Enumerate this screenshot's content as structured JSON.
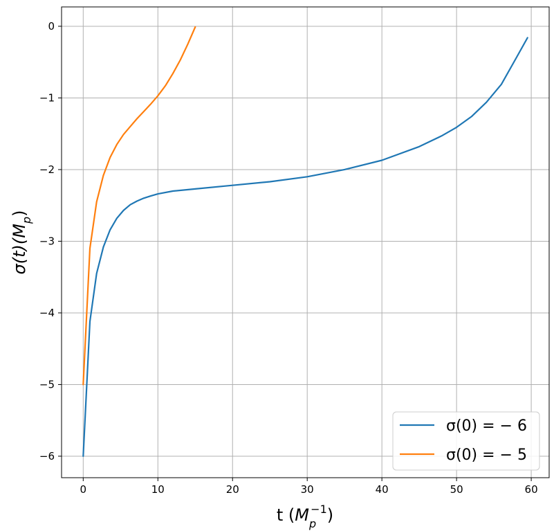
{
  "chart_data": {
    "type": "line",
    "xlabel_text": "t (",
    "xlabel_math": "M",
    "xlabel_sub": "p",
    "xlabel_sup": "−1",
    "xlabel_close": ")",
    "ylabel_text": "σ(t)(",
    "ylabel_math": "M",
    "ylabel_sub": "p",
    "ylabel_close": ")",
    "xlim": [
      -2.9,
      62.4
    ],
    "ylim": [
      -6.3,
      0.27
    ],
    "xticks": [
      0,
      10,
      20,
      30,
      40,
      50,
      60
    ],
    "xtick_labels": [
      "0",
      "10",
      "20",
      "30",
      "40",
      "50",
      "60"
    ],
    "yticks": [
      0,
      -1,
      -2,
      -3,
      -4,
      -5,
      -6
    ],
    "ytick_labels": [
      "0",
      "−1",
      "−2",
      "−3",
      "−4",
      "−5",
      "−6"
    ],
    "grid": true,
    "legend_position": "bottom-right",
    "series": [
      {
        "name": "σ(0) = − 6",
        "color": "#1f77b4",
        "x": [
          0,
          0.9,
          1.8,
          2.7,
          3.6,
          4.5,
          5.4,
          6.3,
          7.2,
          8.1,
          9.0,
          10,
          12,
          15,
          20,
          25,
          30,
          35,
          40,
          45,
          48,
          50,
          52,
          54,
          56,
          58,
          59.5
        ],
        "y": [
          -6.0,
          -4.12,
          -3.45,
          -3.08,
          -2.84,
          -2.68,
          -2.57,
          -2.49,
          -2.44,
          -2.4,
          -2.37,
          -2.34,
          -2.3,
          -2.27,
          -2.22,
          -2.17,
          -2.1,
          -2.0,
          -1.87,
          -1.68,
          -1.53,
          -1.41,
          -1.26,
          -1.06,
          -0.81,
          -0.44,
          -0.16
        ]
      },
      {
        "name": "σ(0) = − 5",
        "color": "#ff7f0e",
        "x": [
          0,
          0.9,
          1.8,
          2.7,
          3.6,
          4.5,
          5.4,
          6.3,
          7.2,
          8.1,
          9.0,
          10,
          11,
          12,
          13,
          14,
          15
        ],
        "y": [
          -5.0,
          -3.1,
          -2.45,
          -2.08,
          -1.83,
          -1.65,
          -1.51,
          -1.4,
          -1.29,
          -1.19,
          -1.09,
          -0.97,
          -0.83,
          -0.66,
          -0.47,
          -0.25,
          -0.01
        ]
      }
    ]
  }
}
